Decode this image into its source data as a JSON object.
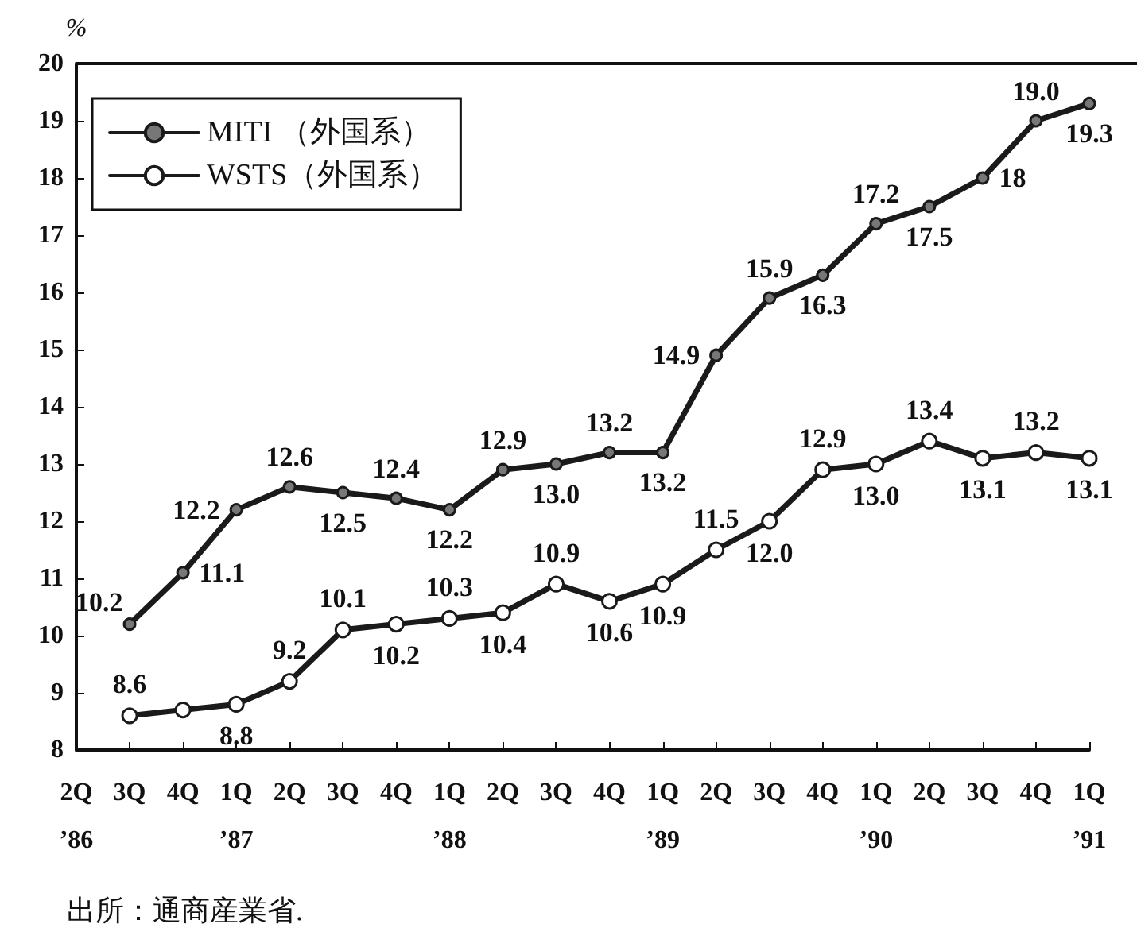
{
  "chart_data": {
    "type": "line",
    "ylabel": "%",
    "categories": [
      "2Q\n’86",
      "3Q",
      "4Q",
      "1Q\n’87",
      "2Q",
      "3Q",
      "4Q",
      "1Q\n’88",
      "2Q",
      "3Q",
      "4Q",
      "1Q\n’89",
      "2Q",
      "3Q",
      "4Q",
      "1Q\n’90",
      "2Q",
      "3Q",
      "4Q",
      "1Q\n’91"
    ],
    "series": [
      {
        "name": "MITI （外国系）",
        "color": "#1a1a1a",
        "values": [
          null,
          10.2,
          11.1,
          12.2,
          12.6,
          12.5,
          12.4,
          12.2,
          12.9,
          13.0,
          13.2,
          13.2,
          14.9,
          15.9,
          16.3,
          17.2,
          17.5,
          18,
          19.0,
          19.3
        ],
        "value_labels": [
          null,
          "10.2",
          "11.1",
          "12.2",
          "12.6",
          "12.5",
          "12.4",
          "12.2",
          "12.9",
          "13.0",
          "13.2",
          "13.2",
          "14.9",
          "15.9",
          "16.3",
          "17.2",
          "17.5",
          "18",
          "19.0",
          "19.3"
        ]
      },
      {
        "name": "WSTS（外国系）",
        "color": "#1a1a1a",
        "values": [
          null,
          8.6,
          8.7,
          8.8,
          9.2,
          10.1,
          10.2,
          10.3,
          10.4,
          10.9,
          10.6,
          10.9,
          11.5,
          12.0,
          12.9,
          13.0,
          13.4,
          13.1,
          13.2,
          13.1
        ],
        "value_labels": [
          null,
          "8.6",
          null,
          "8.8",
          "9.2",
          "10.1",
          "10.2",
          "10.3",
          "10.4",
          "10.9",
          "10.6",
          "10.9",
          "11.5",
          "12.0",
          "12.9",
          "13.0",
          "13.4",
          "13.1",
          "13.2",
          "13.1"
        ]
      }
    ],
    "ylim": [
      8,
      20
    ],
    "yticks": [
      8,
      9,
      10,
      11,
      12,
      13,
      14,
      15,
      16,
      17,
      18,
      19,
      20
    ],
    "legend": "top left",
    "marker": "circle",
    "line_style": "solid",
    "grid": false,
    "annotations": [
      "出所：通商産業省."
    ]
  }
}
